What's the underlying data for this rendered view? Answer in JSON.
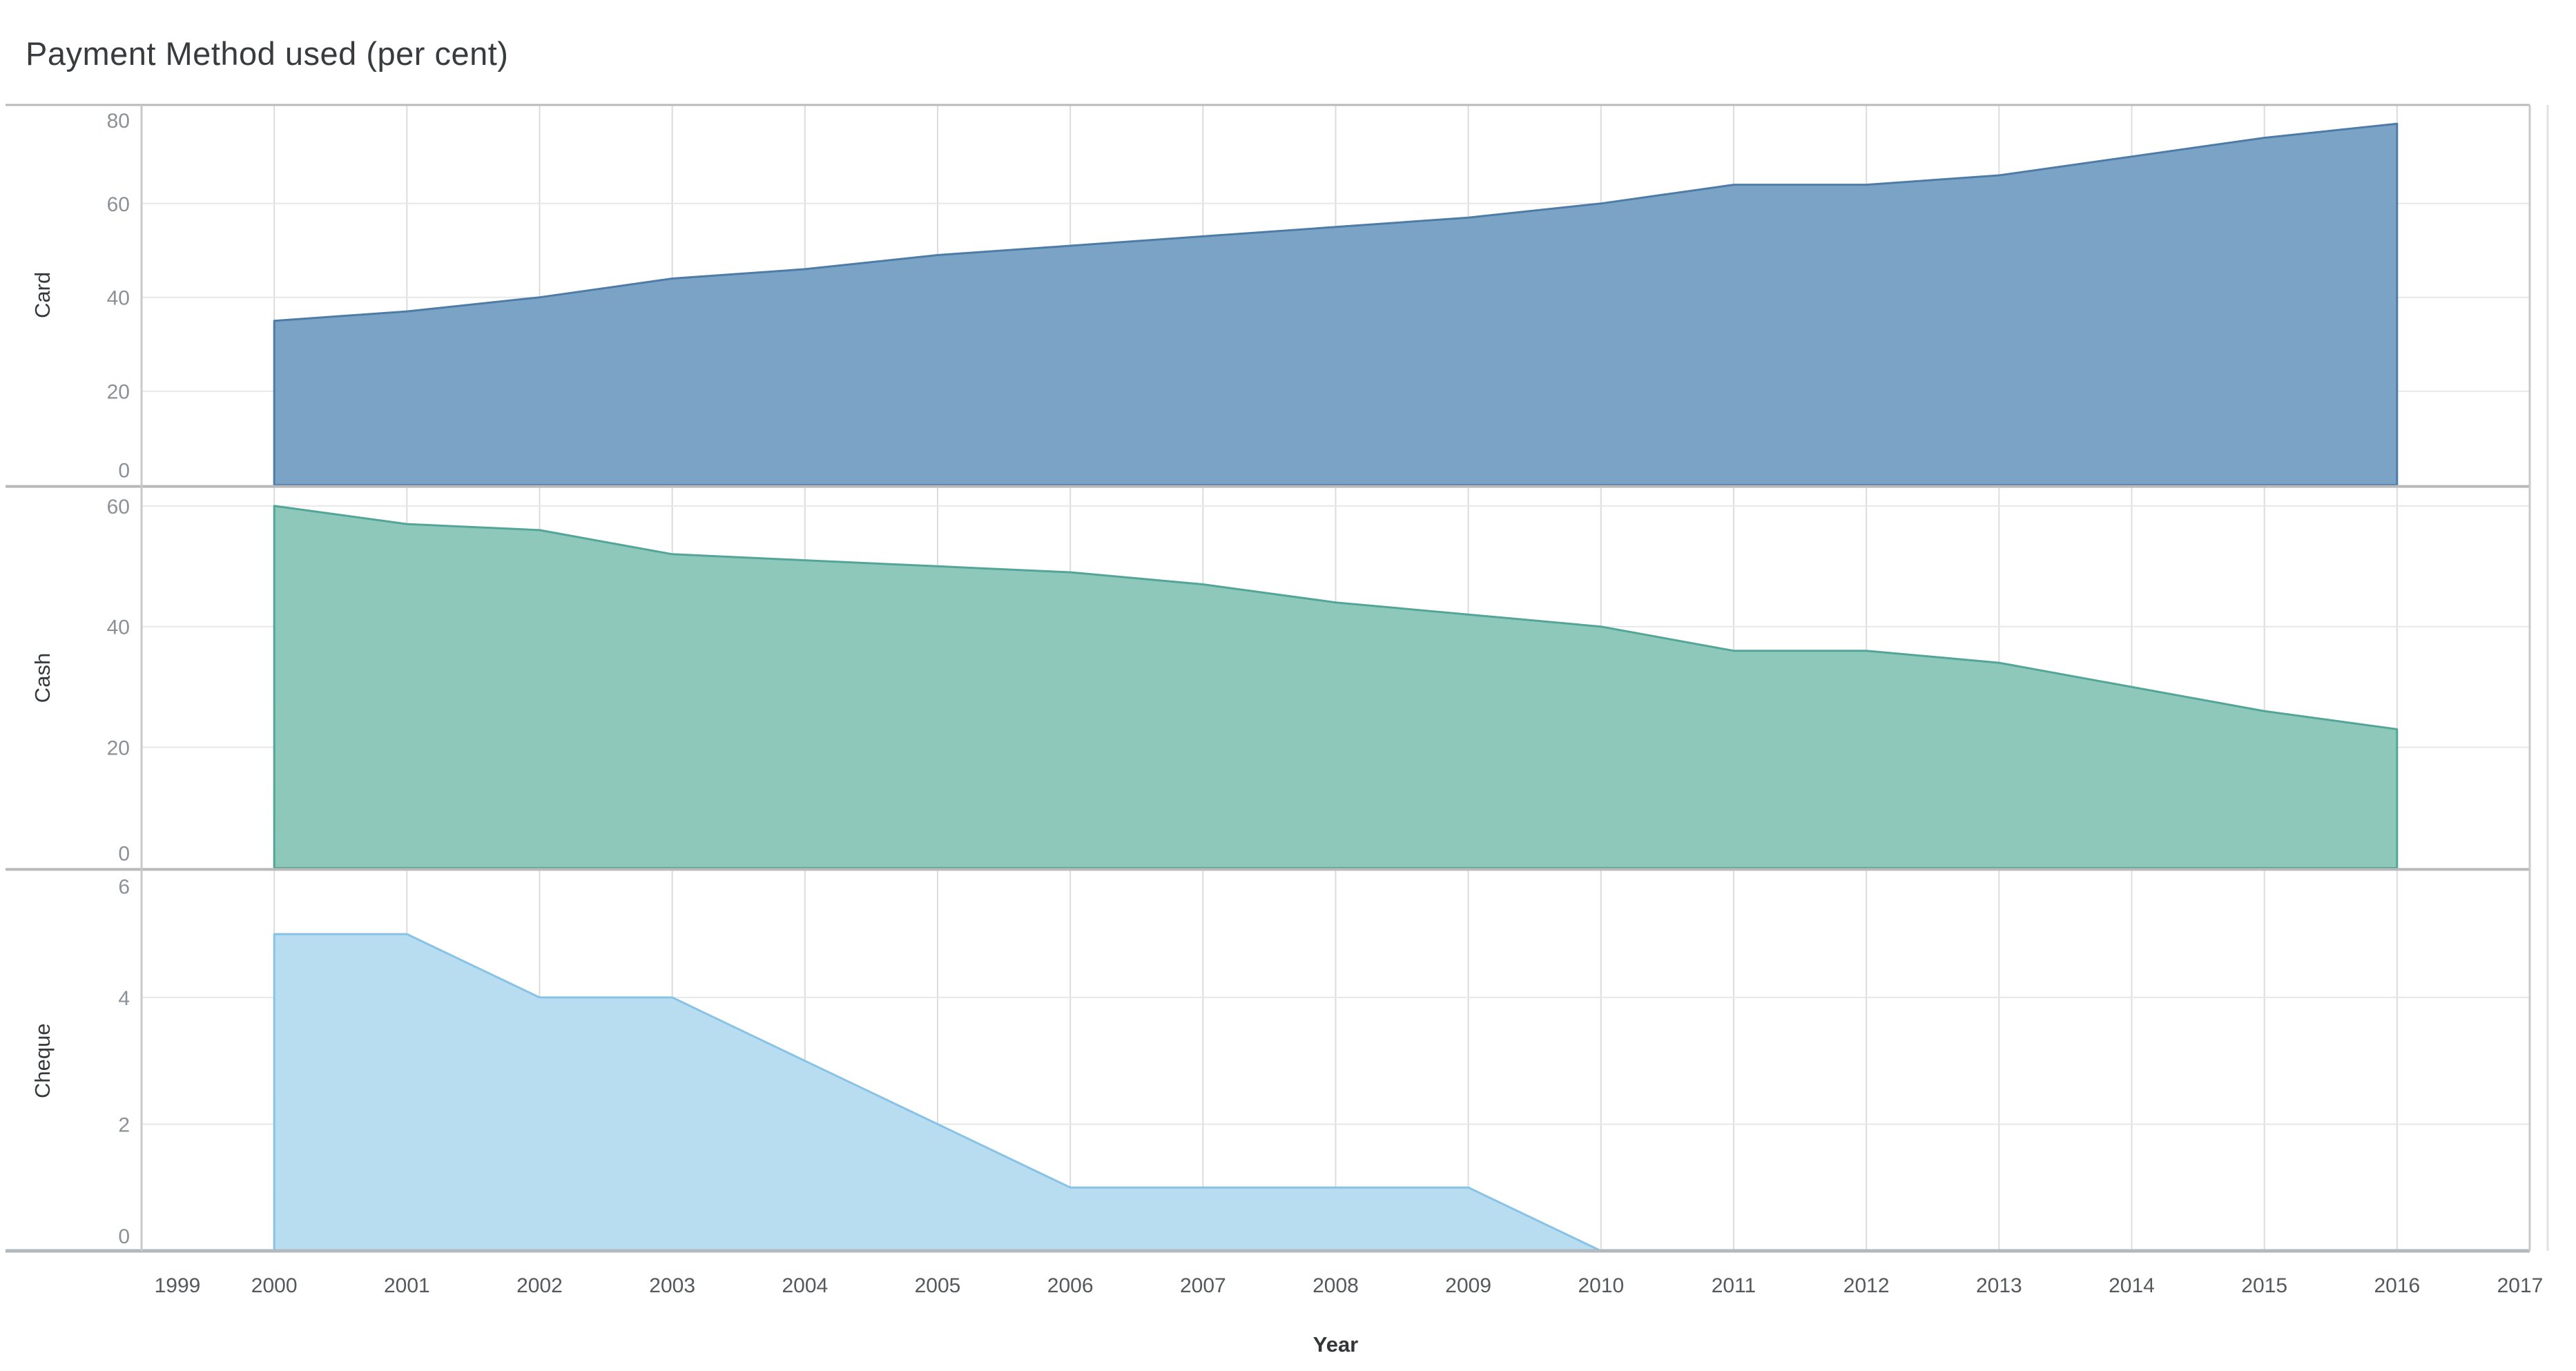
{
  "title": "Payment Method used (per cent)",
  "x_axis_title": "Year",
  "chart_data": {
    "type": "area",
    "title": "Payment Method used (per cent)",
    "xlabel": "Year",
    "x": [
      2000,
      2001,
      2002,
      2003,
      2004,
      2005,
      2006,
      2007,
      2008,
      2009,
      2010,
      2011,
      2012,
      2013,
      2014,
      2015,
      2016
    ],
    "x_axis_tick_labels": [
      1999,
      2000,
      2001,
      2002,
      2003,
      2004,
      2005,
      2006,
      2007,
      2008,
      2009,
      2010,
      2011,
      2012,
      2013,
      2014,
      2015,
      2016,
      2017
    ],
    "x_range_shown": [
      1999,
      2017
    ],
    "grid": true,
    "legend_position": "none",
    "layout_hint": "three vertically stacked panes sharing one x axis, one series per pane",
    "series": [
      {
        "name": "Card",
        "pane_index": 0,
        "values": [
          35,
          37,
          40,
          44,
          46,
          49,
          51,
          53,
          55,
          57,
          60,
          64,
          64,
          66,
          70,
          74,
          77
        ],
        "ylim": [
          0,
          81
        ],
        "yticks": [
          0,
          20,
          40,
          60,
          80
        ],
        "gridline_ticks": [
          20,
          40,
          60
        ],
        "fill_color": "#7aa3c6",
        "stroke_color": "#4e7ca6"
      },
      {
        "name": "Cash",
        "pane_index": 1,
        "values": [
          60,
          57,
          56,
          52,
          51,
          50,
          49,
          47,
          44,
          42,
          40,
          36,
          36,
          34,
          30,
          26,
          23
        ],
        "ylim": [
          0,
          63
        ],
        "yticks": [
          0,
          20,
          40,
          60
        ],
        "gridline_ticks": [
          20,
          40,
          60
        ],
        "fill_color": "#8dc8bb",
        "stroke_color": "#53a597"
      },
      {
        "name": "Cheque",
        "pane_index": 2,
        "values": [
          5,
          5,
          4,
          4,
          3,
          2,
          1,
          1,
          1,
          1,
          0,
          0,
          0,
          0,
          0,
          0,
          0
        ],
        "ylim": [
          0,
          6
        ],
        "yticks": [
          0,
          2,
          4,
          6
        ],
        "gridline_ticks": [
          2,
          4
        ],
        "fill_color": "#b8ddf1",
        "stroke_color": "#88c3e6"
      }
    ]
  },
  "colors": {
    "background": "#ffffff",
    "title_text": "#383c3f",
    "pane_border": "#b9b9b9",
    "axis_line": "#b2b9be",
    "plot_side_border": "#c9c9c9",
    "outer_right_line": "#e2e2e2",
    "vertical_gridline": "#dcdcdc",
    "horizontal_gridline": "#e7e7e7",
    "y_tick_label_text": "#8b9196",
    "x_tick_label_text": "#55595d",
    "pane_label_text": "#35393c",
    "axis_title_text": "#333639"
  }
}
